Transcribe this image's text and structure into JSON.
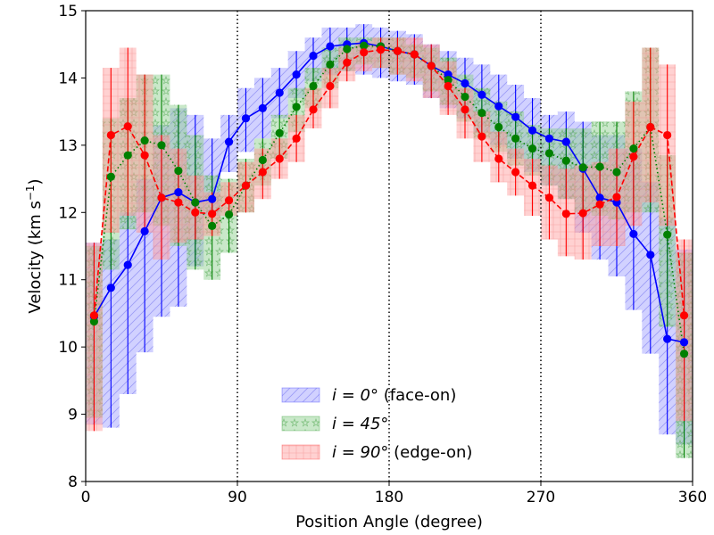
{
  "chart_data": {
    "type": "line",
    "xlabel": "Position Angle (degree)",
    "ylabel_main": "Velocity (km s",
    "ylabel_sup": "−1",
    "ylabel_tail": ")",
    "xlim": [
      0,
      360
    ],
    "ylim": [
      8,
      15
    ],
    "xticks": [
      0,
      90,
      180,
      270,
      360
    ],
    "yticks": [
      8,
      9,
      10,
      11,
      12,
      13,
      14,
      15
    ],
    "vlines": [
      90,
      180,
      270
    ],
    "grid": false,
    "legend_position": "lower-center",
    "x": [
      5,
      15,
      25,
      35,
      45,
      55,
      65,
      75,
      85,
      95,
      105,
      115,
      125,
      135,
      145,
      155,
      165,
      175,
      185,
      195,
      205,
      215,
      225,
      235,
      245,
      255,
      265,
      275,
      285,
      295,
      305,
      315,
      325,
      335,
      345,
      355
    ],
    "series": [
      {
        "legend_main": "i = 0°",
        "legend_tail": " (face-on)",
        "color": "#0000ff",
        "fill": "#9999ff",
        "linestyle": "solid",
        "hatch": "diagonal",
        "y": [
          10.45,
          10.88,
          11.22,
          11.72,
          12.22,
          12.3,
          12.15,
          12.2,
          13.05,
          13.4,
          13.55,
          13.78,
          14.05,
          14.33,
          14.47,
          14.5,
          14.52,
          14.47,
          14.4,
          14.35,
          14.18,
          14.05,
          13.92,
          13.75,
          13.58,
          13.42,
          13.22,
          13.1,
          13.05,
          12.65,
          12.22,
          12.15,
          11.68,
          11.37,
          10.12,
          10.07
        ],
        "lo": [
          8.85,
          8.8,
          9.3,
          9.92,
          10.45,
          10.6,
          11.2,
          11.95,
          12.6,
          12.9,
          13.1,
          13.4,
          13.7,
          13.95,
          14.05,
          14.1,
          14.05,
          14.0,
          13.95,
          13.9,
          13.7,
          13.55,
          13.4,
          13.2,
          13.0,
          12.8,
          12.6,
          12.4,
          12.2,
          11.7,
          11.3,
          11.05,
          10.55,
          9.9,
          8.7,
          8.55
        ],
        "hi": [
          11.55,
          11.6,
          12.0,
          12.5,
          13.3,
          13.55,
          13.45,
          13.1,
          13.45,
          13.85,
          14.0,
          14.15,
          14.4,
          14.6,
          14.75,
          14.75,
          14.8,
          14.75,
          14.7,
          14.65,
          14.5,
          14.4,
          14.3,
          14.2,
          14.05,
          13.9,
          13.7,
          13.45,
          13.5,
          13.35,
          13.15,
          13.15,
          12.95,
          12.45,
          11.9,
          11.45
        ]
      },
      {
        "legend_main": "i = 45°",
        "legend_tail": "",
        "color": "#008000",
        "fill": "#88cc88",
        "linestyle": "dotted",
        "hatch": "stars",
        "y": [
          10.38,
          12.53,
          12.85,
          13.07,
          13.0,
          12.62,
          12.15,
          11.8,
          11.97,
          12.4,
          12.78,
          13.18,
          13.57,
          13.88,
          14.2,
          14.43,
          14.48,
          14.47,
          14.4,
          14.35,
          14.18,
          13.97,
          13.72,
          13.48,
          13.27,
          13.1,
          12.95,
          12.88,
          12.77,
          12.67,
          12.68,
          12.6,
          12.95,
          13.27,
          11.67,
          9.9
        ],
        "lo": [
          8.95,
          11.15,
          11.75,
          12.0,
          11.8,
          11.5,
          11.15,
          11.0,
          11.4,
          12.0,
          12.4,
          12.8,
          13.2,
          13.55,
          13.85,
          14.1,
          14.2,
          14.15,
          14.05,
          14.0,
          13.8,
          13.6,
          13.35,
          13.1,
          12.9,
          12.7,
          12.55,
          12.4,
          12.2,
          12.0,
          11.95,
          11.9,
          12.0,
          12.0,
          10.3,
          8.35
        ],
        "hi": [
          11.5,
          13.4,
          13.7,
          14.05,
          14.05,
          13.6,
          13.15,
          12.55,
          12.5,
          12.8,
          13.1,
          13.45,
          13.85,
          14.15,
          14.45,
          14.6,
          14.6,
          14.6,
          14.6,
          14.5,
          14.45,
          14.3,
          14.05,
          13.85,
          13.65,
          13.5,
          13.3,
          13.25,
          13.25,
          13.25,
          13.35,
          13.35,
          13.8,
          14.45,
          12.85,
          11.4
        ]
      },
      {
        "legend_main": "i = 90°",
        "legend_tail": "  (edge-on)",
        "color": "#ff0000",
        "fill": "#ff9999",
        "linestyle": "dashed",
        "hatch": "grid",
        "y": [
          10.47,
          13.15,
          13.28,
          12.85,
          12.22,
          12.15,
          12.0,
          11.98,
          12.18,
          12.4,
          12.6,
          12.8,
          13.1,
          13.53,
          13.88,
          14.23,
          14.38,
          14.42,
          14.4,
          14.35,
          14.18,
          13.88,
          13.53,
          13.13,
          12.8,
          12.6,
          12.4,
          12.22,
          11.98,
          11.99,
          12.12,
          12.23,
          12.83,
          13.27,
          13.15,
          10.47
        ],
        "lo": [
          8.75,
          11.7,
          11.95,
          11.7,
          11.3,
          11.55,
          11.6,
          11.65,
          11.95,
          12.0,
          12.2,
          12.5,
          12.75,
          13.25,
          13.55,
          13.95,
          14.1,
          14.15,
          14.05,
          13.95,
          13.7,
          13.45,
          13.1,
          12.75,
          12.45,
          12.25,
          11.95,
          11.6,
          11.35,
          11.3,
          11.5,
          11.5,
          11.8,
          12.15,
          11.8,
          8.9
        ],
        "hi": [
          11.55,
          14.15,
          14.45,
          14.05,
          13.15,
          12.95,
          12.55,
          12.3,
          12.45,
          12.75,
          12.95,
          13.1,
          13.45,
          13.85,
          14.15,
          14.45,
          14.55,
          14.6,
          14.6,
          14.6,
          14.5,
          14.25,
          13.85,
          13.5,
          13.2,
          12.95,
          12.8,
          12.7,
          12.65,
          12.7,
          12.75,
          12.95,
          13.65,
          14.45,
          14.2,
          11.6
        ]
      }
    ]
  }
}
